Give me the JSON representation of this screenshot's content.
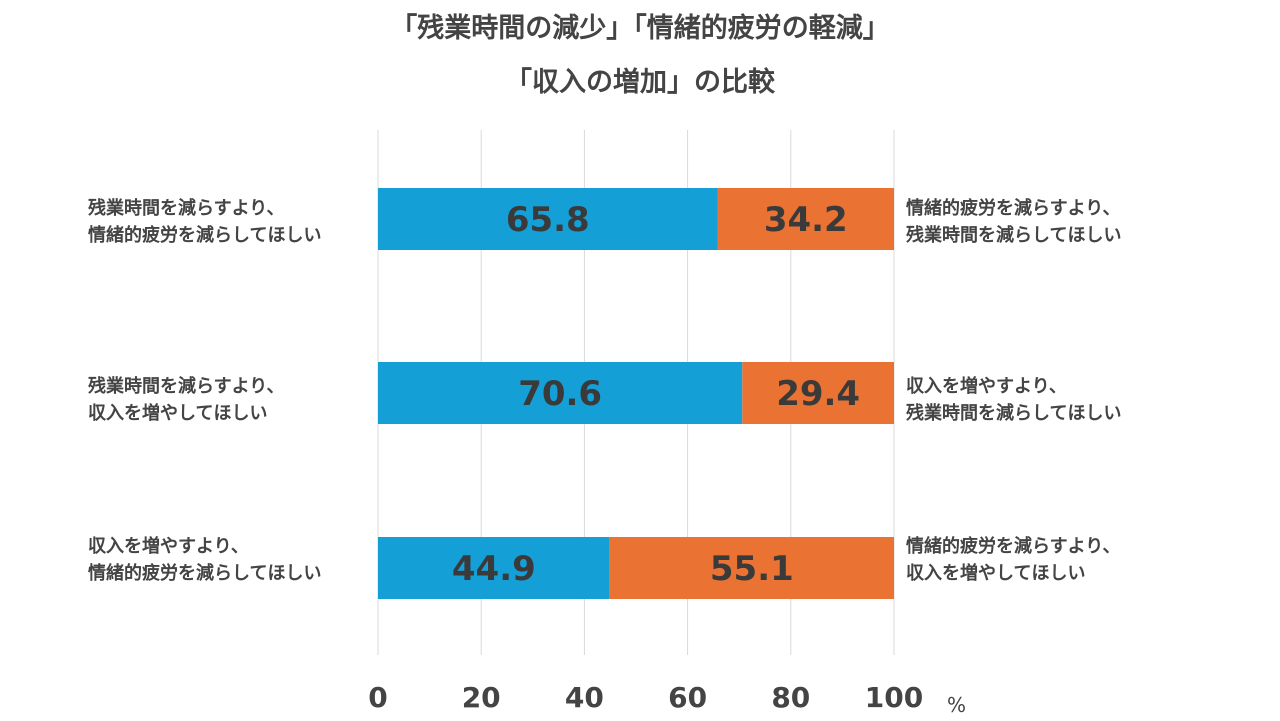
{
  "title_line1": "「残業時間の減少」「情緒的疲労の軽減」",
  "title_line2": "「収入の増加」の比較",
  "unit": "%",
  "colors": {
    "left": "#149fd6",
    "right": "#ea7232",
    "grid": "#d9d9d9",
    "text": "#3a3a3a"
  },
  "rows": [
    {
      "left_label": [
        "残業時間を減らすより、",
        "情緒的疲労を減らしてほしい"
      ],
      "right_label": [
        "情緒的疲労を減らすより、",
        "残業時間を減らしてほしい"
      ]
    },
    {
      "left_label": [
        "残業時間を減らすより、",
        "収入を増やしてほしい"
      ],
      "right_label": [
        "収入を増やすより、",
        "残業時間を減らしてほしい"
      ]
    },
    {
      "left_label": [
        "収入を増やすより、",
        "情緒的疲労を減らしてほしい"
      ],
      "right_label": [
        "情緒的疲労を減らすより、",
        "収入を増やしてほしい"
      ]
    }
  ],
  "chart_data": {
    "type": "bar",
    "orientation": "horizontal",
    "stacked": true,
    "categories": [
      "残業時間を減らすより、情緒的疲労を減らしてほしい",
      "残業時間を減らすより、収入を増やしてほしい",
      "収入を増やすより、情緒的疲労を減らしてほしい"
    ],
    "series": [
      {
        "values": [
          65.8,
          70.6,
          44.9
        ]
      },
      {
        "values": [
          34.2,
          29.4,
          55.1
        ]
      }
    ],
    "xlim": [
      0,
      100
    ],
    "xticks": [
      0,
      20,
      40,
      60,
      80,
      100
    ],
    "grid": true,
    "legend": "none"
  }
}
